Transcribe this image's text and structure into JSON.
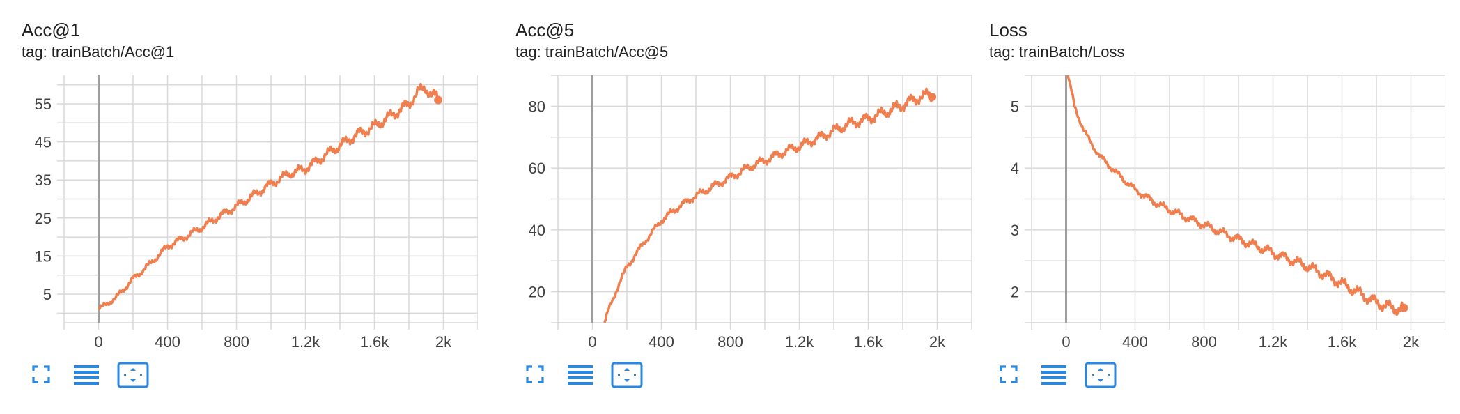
{
  "theme": {
    "line_color": "#f07f50",
    "icon_color": "#2b88e0",
    "grid_color": "#d9d9d9",
    "axis_color": "#9e9e9e"
  },
  "toolbar_icons": [
    "fullscreen-icon",
    "data-table-icon",
    "fit-domain-icon"
  ],
  "cards": [
    {
      "title": "Acc@1",
      "tag": "tag: trainBatch/Acc@1"
    },
    {
      "title": "Acc@5",
      "tag": "tag: trainBatch/Acc@5"
    },
    {
      "title": "Loss",
      "tag": "tag: trainBatch/Loss"
    }
  ],
  "chart_data": [
    {
      "type": "line",
      "title": "Acc@1",
      "subtitle": "tag: trainBatch/Acc@1",
      "xlim": [
        -200,
        2200
      ],
      "ylim": [
        -2.5,
        62.5
      ],
      "x_ticks": [
        0,
        400,
        800,
        1200,
        1600,
        2000
      ],
      "x_tick_labels": [
        "0",
        "400",
        "800",
        "1.2k",
        "1.6k",
        "2k"
      ],
      "y_ticks": [
        5,
        15,
        25,
        35,
        45,
        55
      ],
      "y_tick_labels": [
        "5",
        "15",
        "25",
        "35",
        "45",
        "55"
      ],
      "grid": true,
      "series": [
        {
          "color": "#f07f50",
          "x": [
            0,
            50,
            100,
            200,
            300,
            400,
            500,
            600,
            700,
            800,
            900,
            1000,
            1100,
            1200,
            1300,
            1400,
            1500,
            1600,
            1700,
            1800,
            1850,
            1900,
            1950,
            1970
          ],
          "y": [
            1,
            2.5,
            4,
            9,
            13,
            17.5,
            20,
            22.5,
            25.5,
            28,
            31,
            34,
            36.5,
            38,
            41,
            44,
            47,
            49,
            52,
            55,
            58,
            59,
            57,
            56
          ]
        }
      ]
    },
    {
      "type": "line",
      "title": "Acc@5",
      "subtitle": "tag: trainBatch/Acc@5",
      "xlim": [
        -200,
        2200
      ],
      "ylim": [
        10,
        90
      ],
      "x_ticks": [
        0,
        400,
        800,
        1200,
        1600,
        2000
      ],
      "x_tick_labels": [
        "0",
        "400",
        "800",
        "1.2k",
        "1.6k",
        "2k"
      ],
      "y_ticks": [
        20,
        40,
        60,
        80
      ],
      "y_tick_labels": [
        "20",
        "40",
        "60",
        "80"
      ],
      "grid": true,
      "series": [
        {
          "color": "#f07f50",
          "x": [
            70,
            100,
            150,
            200,
            300,
            400,
            500,
            600,
            700,
            800,
            900,
            1000,
            1100,
            1200,
            1300,
            1400,
            1500,
            1600,
            1700,
            1800,
            1900,
            1950,
            1970
          ],
          "y": [
            10,
            15,
            22,
            28,
            36,
            43,
            47.5,
            51,
            54,
            57,
            60,
            62.5,
            65,
            67,
            69.5,
            72,
            74.5,
            76,
            78,
            80.5,
            83,
            83.5,
            83
          ]
        }
      ]
    },
    {
      "type": "line",
      "title": "Loss",
      "subtitle": "tag: trainBatch/Loss",
      "xlim": [
        -200,
        2200
      ],
      "ylim": [
        1.5,
        5.5
      ],
      "x_ticks": [
        0,
        400,
        800,
        1200,
        1600,
        2000
      ],
      "x_tick_labels": [
        "0",
        "400",
        "800",
        "1.2k",
        "1.6k",
        "2k"
      ],
      "y_ticks": [
        2,
        3,
        4,
        5
      ],
      "y_tick_labels": [
        "2",
        "3",
        "4",
        "5"
      ],
      "grid": true,
      "series": [
        {
          "color": "#f07f50",
          "x": [
            10,
            50,
            100,
            150,
            200,
            300,
            400,
            500,
            600,
            700,
            800,
            900,
            1000,
            1100,
            1200,
            1300,
            1400,
            1500,
            1600,
            1700,
            1800,
            1900,
            1960
          ],
          "y": [
            5.5,
            5.0,
            4.62,
            4.38,
            4.18,
            3.9,
            3.65,
            3.47,
            3.32,
            3.2,
            3.08,
            2.96,
            2.85,
            2.74,
            2.63,
            2.52,
            2.41,
            2.28,
            2.13,
            1.98,
            1.83,
            1.72,
            1.74
          ]
        }
      ]
    }
  ]
}
